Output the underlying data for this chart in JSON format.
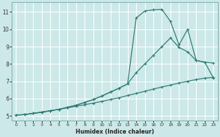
{
  "bg_color": "#cce8e8",
  "grid_color": "#ffffff",
  "line_color": "#2d7a72",
  "xlabel": "Humidex (Indice chaleur)",
  "xlim": [
    -0.5,
    23.5
  ],
  "ylim": [
    4.75,
    11.55
  ],
  "yticks": [
    5,
    6,
    7,
    8,
    9,
    10,
    11
  ],
  "xticks": [
    0,
    1,
    2,
    3,
    4,
    5,
    6,
    7,
    8,
    9,
    10,
    11,
    12,
    13,
    14,
    15,
    16,
    17,
    18,
    19,
    20,
    21,
    22,
    23
  ],
  "curve1_x": [
    0,
    1,
    2,
    3,
    4,
    5,
    6,
    7,
    8,
    9,
    10,
    11,
    12,
    13,
    14,
    15,
    16,
    17,
    18,
    19,
    20,
    21,
    22,
    23
  ],
  "curve1_y": [
    5.05,
    5.08,
    5.15,
    5.22,
    5.3,
    5.38,
    5.47,
    5.56,
    5.65,
    5.74,
    5.84,
    5.95,
    6.05,
    6.18,
    6.3,
    6.42,
    6.55,
    6.67,
    6.78,
    6.9,
    7.0,
    7.1,
    7.18,
    7.22
  ],
  "curve2_x": [
    0,
    1,
    2,
    3,
    4,
    5,
    6,
    7,
    8,
    9,
    10,
    11,
    12,
    13,
    14,
    15,
    16,
    17,
    18,
    19,
    20,
    21,
    22,
    23
  ],
  "curve2_y": [
    5.05,
    5.08,
    5.15,
    5.22,
    5.3,
    5.38,
    5.5,
    5.62,
    5.78,
    5.95,
    6.15,
    6.38,
    6.6,
    6.85,
    7.5,
    8.0,
    8.5,
    9.0,
    9.5,
    8.95,
    8.7,
    8.2,
    8.1,
    8.05
  ],
  "curve3_x": [
    0,
    1,
    2,
    3,
    4,
    5,
    6,
    7,
    8,
    9,
    10,
    11,
    12,
    13,
    14,
    15,
    16,
    17,
    18,
    19,
    20,
    21,
    22,
    23
  ],
  "curve3_y": [
    5.05,
    5.08,
    5.15,
    5.22,
    5.3,
    5.38,
    5.5,
    5.62,
    5.78,
    5.95,
    6.15,
    6.38,
    6.6,
    6.85,
    10.65,
    11.05,
    11.12,
    11.15,
    10.45,
    9.1,
    10.0,
    8.2,
    8.1,
    7.2
  ]
}
